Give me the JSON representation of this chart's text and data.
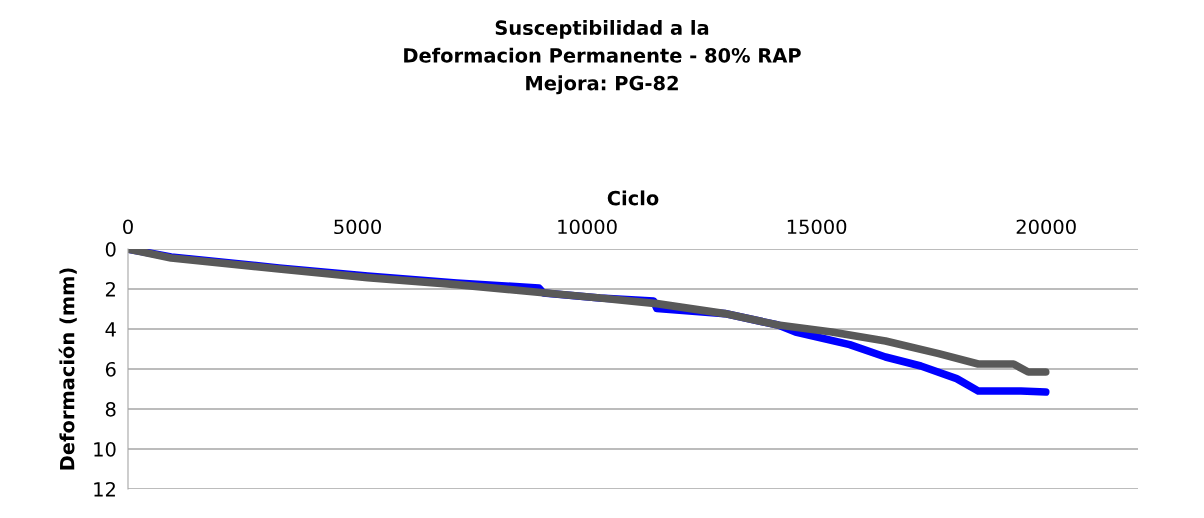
{
  "chart_data": {
    "type": "line",
    "title": "Susceptibilidad a la\nDeformacion Permanente - 80% RAP\nMejora: PG-82",
    "xlabel": "Ciclo",
    "ylabel": "Deformación (mm)",
    "xlim": [
      0,
      22000
    ],
    "xticks": [
      0,
      5000,
      10000,
      15000,
      20000
    ],
    "ylim": [
      12,
      0
    ],
    "yticks": [
      0,
      2,
      4,
      6,
      8,
      10,
      12
    ],
    "grid": "y",
    "marker": "none",
    "line_style": "solid",
    "series": [
      {
        "color": "#0000ff",
        "x": [
          0,
          940,
          3290,
          5220,
          7160,
          8950,
          9050,
          10280,
          11450,
          11520,
          13000,
          14160,
          14540,
          15720,
          16500,
          17270,
          18050,
          18520,
          19450,
          19990
        ],
        "values": [
          0,
          0.4,
          0.95,
          1.35,
          1.7,
          1.95,
          2.2,
          2.45,
          2.6,
          2.97,
          3.23,
          3.8,
          4.15,
          4.78,
          5.4,
          5.85,
          6.48,
          7.1,
          7.1,
          7.15
        ]
      },
      {
        "color": "#595959",
        "x": [
          0,
          940,
          3290,
          5220,
          7160,
          9100,
          10280,
          11520,
          13000,
          14160,
          15330,
          16500,
          17660,
          18520,
          19290,
          19610,
          19990
        ],
        "values": [
          0,
          0.45,
          1.0,
          1.43,
          1.78,
          2.2,
          2.45,
          2.73,
          3.23,
          3.8,
          4.15,
          4.6,
          5.23,
          5.75,
          5.75,
          6.15,
          6.15
        ]
      }
    ]
  }
}
